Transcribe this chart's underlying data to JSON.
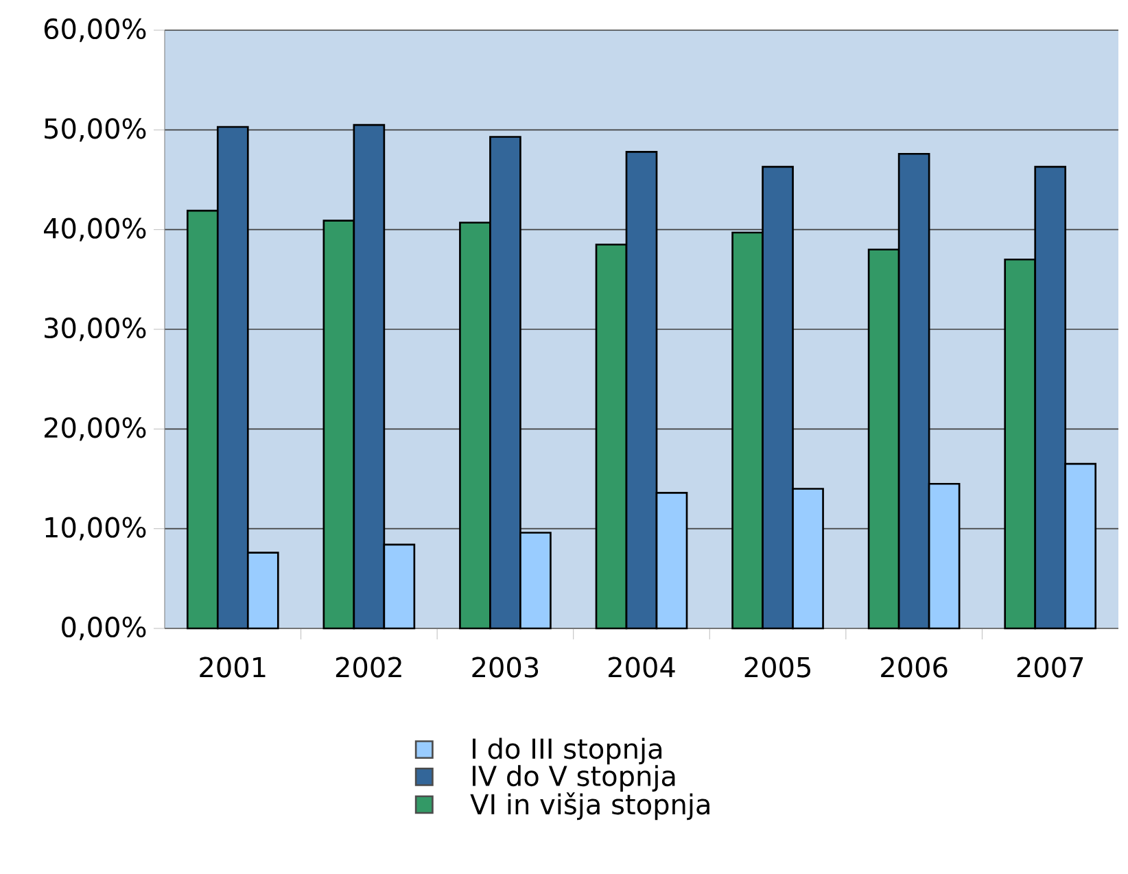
{
  "chart_data": {
    "type": "bar",
    "categories": [
      "2001",
      "2002",
      "2003",
      "2004",
      "2005",
      "2006",
      "2007"
    ],
    "series": [
      {
        "name": "VI in višja stopnja",
        "color": "#339966",
        "values": [
          41.9,
          40.9,
          40.7,
          38.5,
          39.7,
          38.0,
          37.0
        ]
      },
      {
        "name": "IV do V stopnja",
        "color": "#336699",
        "values": [
          50.3,
          50.5,
          49.3,
          47.8,
          46.3,
          47.6,
          46.3
        ]
      },
      {
        "name": "I do III stopnja",
        "color": "#99ccff",
        "values": [
          7.6,
          8.4,
          9.6,
          13.6,
          14.0,
          14.5,
          16.5
        ]
      }
    ],
    "ylim": [
      0,
      60
    ],
    "yticks": [
      {
        "value": 0,
        "label": "0,00%"
      },
      {
        "value": 10,
        "label": "10,00%"
      },
      {
        "value": 20,
        "label": "20,00%"
      },
      {
        "value": 30,
        "label": "30,00%"
      },
      {
        "value": 40,
        "label": "40,00%"
      },
      {
        "value": 50,
        "label": "50,00%"
      },
      {
        "value": 60,
        "label": "60,00%"
      }
    ],
    "grid": "y",
    "legend": "bottom"
  }
}
